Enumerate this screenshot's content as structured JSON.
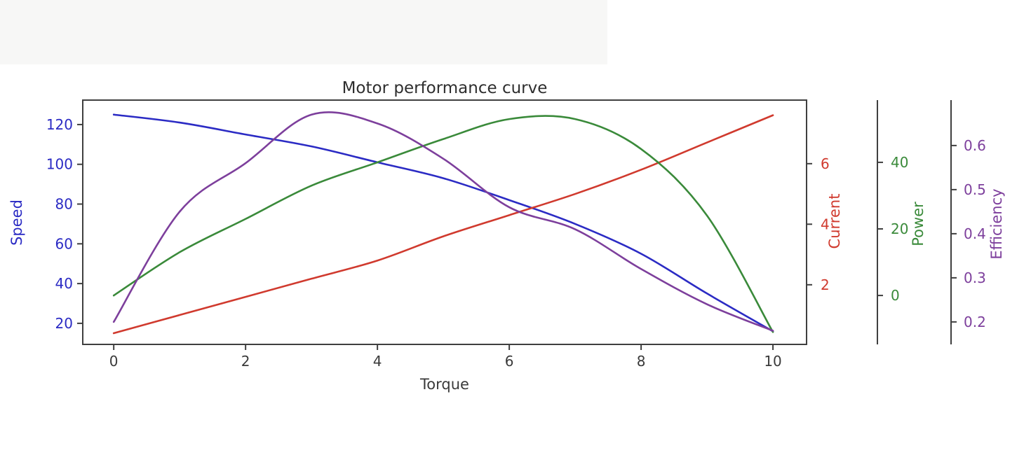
{
  "chart_data": {
    "type": "line",
    "title": "Motor performance curve",
    "xlabel": "Torque",
    "grid": false,
    "legend": "none",
    "x": [
      0,
      1,
      2,
      3,
      4,
      5,
      6,
      7,
      8,
      9,
      10
    ],
    "series": [
      {
        "name": "Speed",
        "axis": "speed",
        "color": "#2b2bc4",
        "values": [
          125,
          121,
          115,
          109,
          101,
          93,
          82,
          70,
          55,
          35,
          16
        ]
      },
      {
        "name": "Current",
        "axis": "current",
        "color": "#d03a2e",
        "values": [
          0.4,
          1.0,
          1.6,
          2.2,
          2.8,
          3.6,
          4.3,
          5.0,
          5.8,
          6.7,
          7.6
        ]
      },
      {
        "name": "Power",
        "axis": "power",
        "color": "#3a8a3a",
        "values": [
          0,
          13,
          23,
          33,
          40,
          47,
          53,
          53,
          44,
          24,
          -11
        ]
      },
      {
        "name": "Efficiency",
        "axis": "efficiency",
        "color": "#7d3f9c",
        "values": [
          0.2,
          0.45,
          0.56,
          0.67,
          0.65,
          0.57,
          0.46,
          0.41,
          0.32,
          0.24,
          0.18
        ]
      }
    ],
    "axes": {
      "x": {
        "label": "Torque",
        "color": "#3a3a3a",
        "ticks": [
          0,
          2,
          4,
          6,
          8,
          10
        ],
        "range": [
          -0.47,
          10.51
        ]
      },
      "speed": {
        "label": "Speed",
        "color": "#2b2bc4",
        "ticks": [
          20,
          40,
          60,
          80,
          100,
          120
        ],
        "range": [
          9.4,
          132.3
        ],
        "side": "left"
      },
      "current": {
        "label": "Current",
        "color": "#d03a2e",
        "ticks": [
          2,
          4,
          6
        ],
        "range": [
          0.03,
          8.1
        ],
        "side": "right"
      },
      "power": {
        "label": "Power",
        "color": "#3a8a3a",
        "ticks": [
          0,
          20,
          40
        ],
        "range": [
          -14.7,
          58.7
        ],
        "side": "right-offset-1"
      },
      "efficiency": {
        "label": "Efficiency",
        "color": "#7d3f9c",
        "ticks": [
          0.2,
          0.3,
          0.4,
          0.5,
          0.6
        ],
        "range": [
          0.149,
          0.703
        ],
        "side": "right-offset-2"
      }
    }
  }
}
